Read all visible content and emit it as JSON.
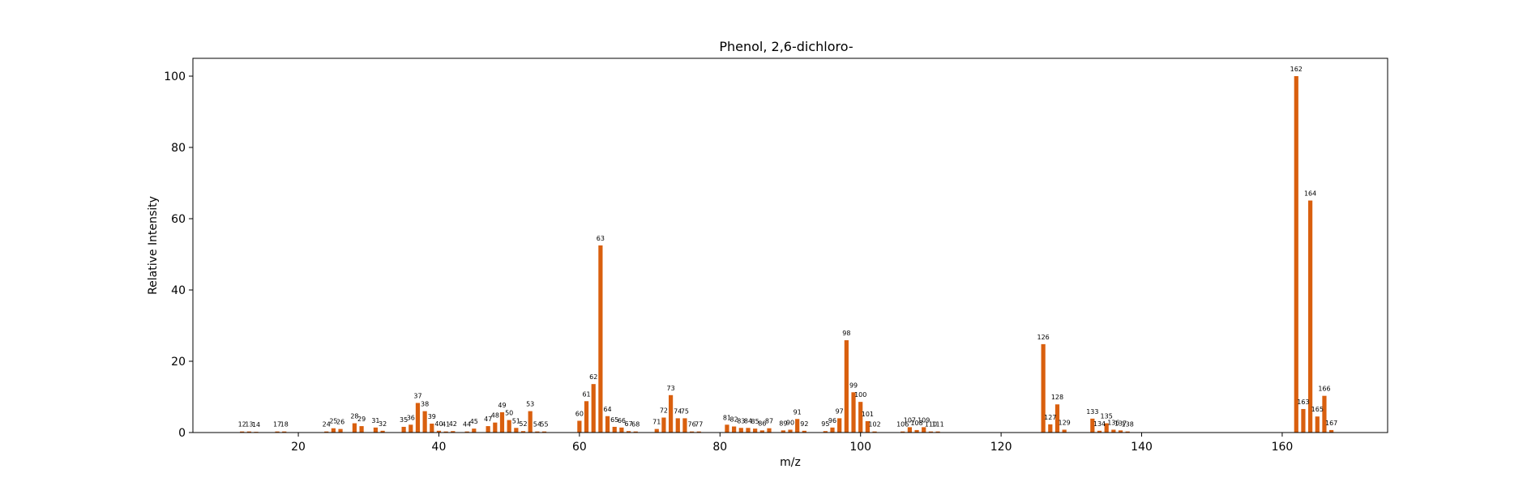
{
  "chart_data": {
    "type": "bar",
    "title": "Phenol, 2,6-dichloro-",
    "xlabel": "m/z",
    "ylabel": "Relative Intensity",
    "xlim": [
      5,
      175
    ],
    "ylim": [
      0,
      105
    ],
    "xticks": [
      20,
      40,
      60,
      80,
      100,
      120,
      140,
      160
    ],
    "yticks": [
      0,
      20,
      40,
      60,
      80,
      100
    ],
    "grid": false,
    "bar_color": "#d95f0e",
    "x": [
      12,
      13,
      14,
      17,
      18,
      24,
      25,
      26,
      28,
      29,
      31,
      32,
      35,
      36,
      37,
      38,
      39,
      40,
      41,
      42,
      44,
      45,
      47,
      48,
      49,
      50,
      51,
      52,
      53,
      54,
      55,
      60,
      61,
      62,
      63,
      64,
      65,
      66,
      67,
      68,
      71,
      72,
      73,
      74,
      75,
      76,
      77,
      81,
      82,
      83,
      84,
      85,
      86,
      87,
      89,
      90,
      91,
      92,
      95,
      96,
      97,
      98,
      99,
      100,
      101,
      102,
      106,
      107,
      108,
      109,
      110,
      111,
      126,
      127,
      128,
      129,
      133,
      134,
      135,
      136,
      137,
      138,
      162,
      163,
      164,
      165,
      166,
      167
    ],
    "values": [
      0.3,
      0.3,
      0.2,
      0.3,
      0.3,
      0.3,
      1.2,
      1.0,
      2.6,
      1.8,
      1.4,
      0.5,
      1.6,
      2.2,
      8.3,
      6.0,
      2.5,
      0.5,
      0.3,
      0.4,
      0.3,
      1.1,
      1.8,
      2.8,
      5.7,
      3.5,
      1.3,
      0.4,
      6.0,
      0.3,
      0.3,
      3.3,
      8.8,
      13.6,
      52.5,
      4.6,
      1.6,
      1.4,
      0.4,
      0.3,
      1.0,
      4.2,
      10.5,
      4.0,
      4.0,
      0.3,
      0.3,
      2.2,
      1.7,
      1.3,
      1.3,
      1.1,
      0.6,
      1.2,
      0.6,
      0.8,
      3.8,
      0.5,
      0.4,
      1.4,
      4.0,
      25.9,
      11.3,
      8.6,
      3.2,
      0.3,
      0.3,
      1.5,
      0.7,
      1.5,
      0.3,
      0.3,
      24.8,
      2.3,
      7.9,
      0.8,
      3.9,
      0.5,
      2.6,
      0.8,
      0.6,
      0.3,
      100.0,
      6.6,
      65.1,
      4.5,
      10.3,
      0.7
    ]
  }
}
